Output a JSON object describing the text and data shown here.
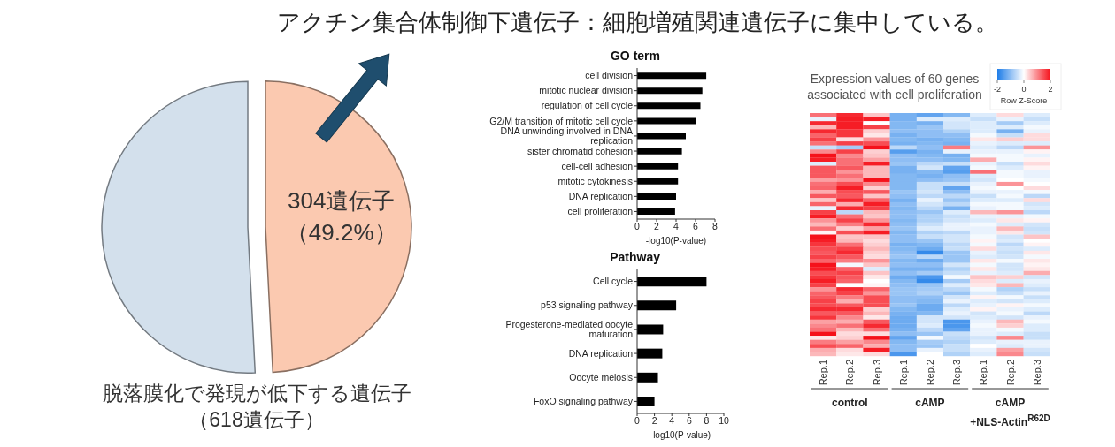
{
  "chart_data": [
    {
      "type": "pie",
      "title": "アクチン集合体制御下遺伝子：細胞増殖関連遺伝子に集中している。",
      "categories": [
        null,
        null
      ],
      "values": [
        49.2,
        50.8
      ],
      "colors": [
        "#fbc9b0",
        "#d3e0ec"
      ],
      "value_labels": [
        "304遺伝子（49.2%）",
        null
      ],
      "annotations": [
        "脱落膜化で発現が低下する遺伝子",
        "（618遺伝子）"
      ]
    },
    {
      "type": "bar",
      "orientation": "horizontal",
      "title": "GO term",
      "categories": [
        "cell division",
        "mitotic nuclear division",
        "regulation of cell cycle",
        "G2/M transition of mitotic cell cycle",
        "DNA unwinding involved in DNA replication",
        "sister chromatid cohesion",
        "cell-cell adhesion",
        "mitotic cytokinesis",
        "DNA replication",
        "cell proliferation"
      ],
      "values": [
        7.1,
        6.7,
        6.5,
        6.0,
        5.0,
        4.6,
        4.2,
        4.2,
        4.0,
        3.9
      ],
      "color": "#000000",
      "xlim": [
        0,
        8
      ],
      "xticks": [
        0,
        2,
        4,
        6,
        8
      ],
      "xlabel": "-log10(P-value)"
    },
    {
      "type": "bar",
      "orientation": "horizontal",
      "title": "Pathway",
      "categories": [
        "Cell cycle",
        "p53 signaling pathway",
        "Progesterone-mediated oocyte maturation",
        "DNA replication",
        "Oocyte meiosis",
        "FoxO signaling pathway"
      ],
      "values": [
        8.0,
        4.5,
        3.0,
        2.9,
        2.4,
        2.0
      ],
      "color": "#000000",
      "xlim": [
        0,
        10
      ],
      "xticks": [
        0,
        2,
        4,
        6,
        8,
        10
      ],
      "xlabel": "-log10(P-value)"
    },
    {
      "type": "heatmap",
      "title": "Expression values of 60 genes associated with cell proliferation",
      "categories": [
        "Rep.1",
        "Rep.2",
        "Rep.3",
        "Rep.1",
        "Rep.2",
        "Rep.3",
        "Rep.1",
        "Rep.2",
        "Rep.3"
      ],
      "y_categories": [
        null,
        null,
        null,
        null,
        null,
        null,
        null,
        null,
        null,
        null,
        null,
        null,
        null,
        null,
        null,
        null,
        null,
        null,
        null,
        null,
        null,
        null,
        null,
        null,
        null,
        null,
        null,
        null,
        null,
        null,
        null,
        null,
        null,
        null,
        null,
        null,
        null,
        null,
        null,
        null,
        null,
        null,
        null,
        null,
        null,
        null,
        null,
        null,
        null,
        null,
        null,
        null,
        null,
        null,
        null,
        null,
        null,
        null,
        null,
        null
      ],
      "clim": [
        -2,
        2
      ],
      "cticks": [
        -2,
        0,
        2
      ],
      "clabel": "Row Z-Score",
      "annotations": [
        "control",
        "cAMP",
        "cAMP +NLS-Actin$^{R62D}$"
      ],
      "cells": [
        [
          1.2,
          1.8,
          0.5,
          -1.2,
          -1.4,
          -1.1,
          -0.3,
          0.3,
          -0.3
        ],
        [
          -0.2,
          1.9,
          1.9,
          -1.2,
          -0.3,
          -0.3,
          -0.5,
          -0.2,
          -0.5
        ],
        [
          1.8,
          1.9,
          0.0,
          -1.1,
          -1.2,
          -0.4,
          -0.3,
          -0.8,
          -0.3
        ],
        [
          0.6,
          1.9,
          1.6,
          -1.1,
          -0.9,
          -0.4,
          -0.3,
          -0.3,
          -0.1
        ],
        [
          1.8,
          1.7,
          0.4,
          -1.0,
          -1.0,
          -0.7,
          -0.3,
          -1.2,
          -0.2
        ],
        [
          1.3,
          1.7,
          0.2,
          -1.2,
          -1.0,
          -1.0,
          -0.1,
          -0.5,
          0.3
        ],
        [
          1.6,
          0.3,
          0.9,
          -1.1,
          -1.2,
          -1.1,
          0.2,
          0.4,
          0.3
        ],
        [
          1.2,
          1.6,
          1.5,
          -1.2,
          -1.1,
          -1.2,
          -0.2,
          -0.3,
          -0.3
        ],
        [
          -0.5,
          -0.8,
          2.0,
          -0.6,
          -1.0,
          1.1,
          -0.3,
          -0.6,
          0.9
        ],
        [
          1.0,
          1.6,
          0.4,
          -1.5,
          -1.2,
          -0.2,
          -0.2,
          -0.2,
          0.1
        ],
        [
          2.0,
          1.0,
          0.5,
          -1.0,
          -1.1,
          -1.2,
          -0.1,
          -0.1,
          -0.2
        ],
        [
          1.9,
          1.2,
          0.8,
          -1.0,
          -1.0,
          -1.1,
          0.7,
          -0.1,
          0.1
        ],
        [
          -0.3,
          1.2,
          1.9,
          -0.9,
          -0.6,
          -0.5,
          -0.2,
          -0.5,
          0.3
        ],
        [
          1.4,
          1.4,
          0.6,
          -1.2,
          -0.4,
          -1.4,
          -0.1,
          -0.3,
          0.1
        ],
        [
          1.4,
          0.9,
          0.6,
          -1.2,
          -1.1,
          -1.5,
          1.2,
          -0.1,
          -0.2
        ],
        [
          1.4,
          1.2,
          0.6,
          -1.1,
          -1.2,
          -1.0,
          -0.3,
          -0.1,
          -0.2
        ],
        [
          0.8,
          0.9,
          2.0,
          -1.1,
          -1.0,
          -0.9,
          -0.4,
          0.0,
          -0.1
        ],
        [
          1.2,
          1.5,
          1.0,
          -1.1,
          -0.5,
          -0.5,
          -0.2,
          0.9,
          0.0
        ],
        [
          1.3,
          1.9,
          0.4,
          -1.1,
          -0.5,
          -1.4,
          -0.1,
          0.0,
          0.3
        ],
        [
          0.7,
          1.5,
          1.4,
          -0.9,
          -0.4,
          -1.0,
          -0.2,
          -0.2,
          -0.1
        ],
        [
          1.4,
          1.4,
          0.5,
          -1.0,
          -0.6,
          -0.6,
          -0.5,
          -0.1,
          -0.6
        ],
        [
          0.5,
          1.8,
          1.3,
          -1.2,
          -0.2,
          -0.9,
          -0.3,
          -0.3,
          0.3
        ],
        [
          1.3,
          0.7,
          1.9,
          -1.0,
          -0.4,
          -0.6,
          -0.1,
          -0.1,
          -0.4
        ],
        [
          -0.2,
          1.8,
          1.6,
          -1.1,
          -0.6,
          -1.2,
          -0.2,
          -0.1,
          -0.3
        ],
        [
          1.6,
          -0.6,
          0.6,
          -1.0,
          -0.9,
          -0.3,
          0.6,
          0.9,
          -0.6
        ],
        [
          1.9,
          1.2,
          0.5,
          -1.0,
          -0.7,
          -0.5,
          -0.2,
          -0.2,
          -0.1
        ],
        [
          0.9,
          1.6,
          0.9,
          -1.1,
          -0.7,
          -0.4,
          -0.3,
          0.2,
          0.1
        ],
        [
          0.6,
          1.1,
          1.8,
          -1.0,
          -0.5,
          -0.2,
          -0.1,
          -0.3,
          -0.4
        ],
        [
          1.2,
          0.4,
          0.8,
          -0.9,
          -0.3,
          -0.2,
          -0.2,
          0.6,
          -0.5
        ],
        [
          0.1,
          1.5,
          1.9,
          -1.1,
          -0.7,
          -0.6,
          -0.2,
          0.2,
          -0.4
        ],
        [
          2.0,
          0.5,
          0.5,
          -1.0,
          -0.5,
          -0.4,
          -0.1,
          -0.4,
          0.5
        ],
        [
          1.9,
          0.6,
          0.3,
          -1.0,
          -0.9,
          -0.4,
          0.1,
          -0.3,
          0.0
        ],
        [
          1.7,
          1.2,
          0.4,
          -1.2,
          -1.1,
          -0.6,
          -0.1,
          -0.6,
          0.1
        ],
        [
          1.5,
          1.6,
          0.6,
          -1.1,
          -1.3,
          -0.5,
          0.3,
          -0.4,
          -0.3
        ],
        [
          1.4,
          1.8,
          0.4,
          -1.0,
          -1.8,
          -0.9,
          -0.2,
          -0.5,
          0.2
        ],
        [
          1.6,
          1.4,
          0.3,
          -0.9,
          -0.6,
          -0.9,
          -0.3,
          -0.4,
          -0.1
        ],
        [
          1.3,
          1.1,
          0.9,
          -1.1,
          -1.3,
          -0.9,
          0.2,
          -0.1,
          0.2
        ],
        [
          2.0,
          -0.1,
          0.5,
          -1.0,
          -1.0,
          -0.4,
          -0.1,
          -0.4,
          0.1
        ],
        [
          1.9,
          1.3,
          -0.3,
          -1.2,
          -1.2,
          -0.7,
          0.2,
          -0.4,
          0.2
        ],
        [
          1.5,
          1.6,
          0.5,
          -1.0,
          -0.8,
          -0.5,
          -0.2,
          -0.3,
          0.7
        ],
        [
          1.7,
          1.4,
          0.2,
          -1.3,
          -1.6,
          -0.1,
          0.5,
          0.4,
          -0.4
        ],
        [
          1.9,
          1.3,
          0.0,
          -1.1,
          -1.8,
          -0.8,
          0.3,
          -0.3,
          -0.2
        ],
        [
          1.6,
          0.0,
          0.1,
          -1.0,
          -0.9,
          -0.3,
          0.2,
          0.6,
          -0.3
        ],
        [
          0.9,
          1.8,
          1.3,
          -0.9,
          -0.8,
          -0.6,
          -0.1,
          -0.7,
          -0.5
        ],
        [
          1.3,
          1.6,
          0.9,
          -0.9,
          -0.7,
          -0.9,
          -0.3,
          -0.5,
          -0.2
        ],
        [
          1.4,
          1.1,
          1.5,
          -1.0,
          -1.0,
          -0.4,
          0.1,
          -0.1,
          -0.5
        ],
        [
          1.6,
          0.7,
          1.5,
          -1.0,
          -1.1,
          -0.2,
          -0.3,
          -0.4,
          -0.3
        ],
        [
          1.5,
          1.4,
          1.5,
          -0.9,
          -1.3,
          -0.6,
          -0.2,
          0.1,
          -0.1
        ],
        [
          1.8,
          1.8,
          0.4,
          -1.1,
          -1.3,
          -0.3,
          0.1,
          -0.2,
          -0.3
        ],
        [
          1.4,
          1.4,
          0.6,
          -1.2,
          -1.1,
          -0.2,
          -0.4,
          -0.1,
          -0.6
        ],
        [
          1.7,
          1.0,
          0.2,
          -1.3,
          -0.4,
          -0.4,
          -0.3,
          -0.4,
          -0.2
        ],
        [
          0.8,
          0.7,
          1.4,
          -1.3,
          -0.4,
          -1.6,
          -0.2,
          0.6,
          -0.1
        ],
        [
          1.0,
          1.2,
          1.8,
          -1.3,
          -0.3,
          -1.6,
          -0.1,
          0.4,
          -0.3
        ],
        [
          1.2,
          0.6,
          1.2,
          -1.2,
          -0.6,
          -1.4,
          -0.2,
          -0.1,
          -0.3
        ],
        [
          2.0,
          0.3,
          0.3,
          -1.0,
          -0.9,
          -0.5,
          -0.2,
          -0.3,
          -0.5
        ],
        [
          0.2,
          0.4,
          2.0,
          -1.4,
          -0.1,
          -0.6,
          -0.4,
          1.0,
          -0.5
        ],
        [
          1.1,
          0.8,
          1.0,
          -1.1,
          -0.8,
          -0.7,
          -0.3,
          -0.2,
          -0.2
        ],
        [
          1.5,
          1.3,
          0.7,
          -1.0,
          -0.9,
          -0.5,
          0.0,
          -0.3,
          -0.2
        ],
        [
          0.7,
          0.3,
          1.9,
          -1.0,
          -0.2,
          -0.5,
          -0.2,
          0.8,
          -0.4
        ],
        [
          0.6,
          0.2,
          0.3,
          -1.6,
          0.0,
          -0.7,
          -0.3,
          1.0,
          -0.5
        ]
      ]
    }
  ]
}
